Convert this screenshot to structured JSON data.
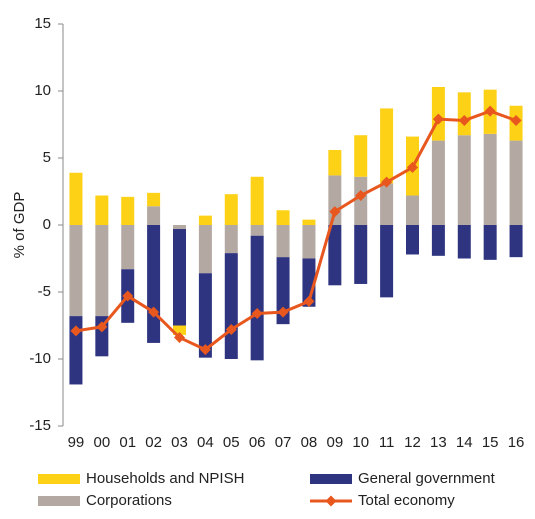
{
  "chart_data": {
    "type": "bar",
    "stacked": true,
    "y_label": "% of GDP",
    "categories": [
      "99",
      "00",
      "01",
      "02",
      "03",
      "04",
      "05",
      "06",
      "07",
      "08",
      "09",
      "10",
      "11",
      "12",
      "13",
      "14",
      "15",
      "16"
    ],
    "series": [
      {
        "name": "Households and NPISH",
        "color": "#fcd116",
        "values": [
          3.9,
          2.2,
          2.1,
          1.0,
          -0.7,
          0.7,
          2.3,
          3.6,
          1.1,
          0.4,
          1.9,
          3.1,
          5.6,
          4.4,
          4.0,
          3.2,
          3.3,
          2.6
        ]
      },
      {
        "name": "General government",
        "color": "#2e3480",
        "values": [
          -5.1,
          -3.0,
          -4.0,
          -8.8,
          -7.2,
          -6.3,
          -7.9,
          -9.3,
          -5.0,
          -3.6,
          -4.5,
          -4.4,
          -5.4,
          -2.2,
          -2.3,
          -2.5,
          -2.6,
          -2.4
        ]
      },
      {
        "name": "Corporations",
        "color": "#b4a9a2",
        "values": [
          -6.8,
          -6.8,
          -3.3,
          1.4,
          -0.3,
          -3.6,
          -2.1,
          -0.8,
          -2.4,
          -2.5,
          3.7,
          3.6,
          3.1,
          2.2,
          6.3,
          6.7,
          6.8,
          6.3
        ]
      },
      {
        "name": "Total economy",
        "color": "#e8571d",
        "type": "line",
        "values": [
          -7.9,
          -7.6,
          -5.3,
          -6.5,
          -8.4,
          -9.3,
          -7.8,
          -6.6,
          -6.5,
          -5.7,
          1.0,
          2.2,
          3.2,
          4.3,
          7.9,
          7.8,
          8.5,
          7.8
        ]
      }
    ],
    "ylim": [
      -15,
      15
    ],
    "yticks": [
      -15,
      -10,
      -5,
      0,
      5,
      10,
      15
    ],
    "grid": false
  }
}
